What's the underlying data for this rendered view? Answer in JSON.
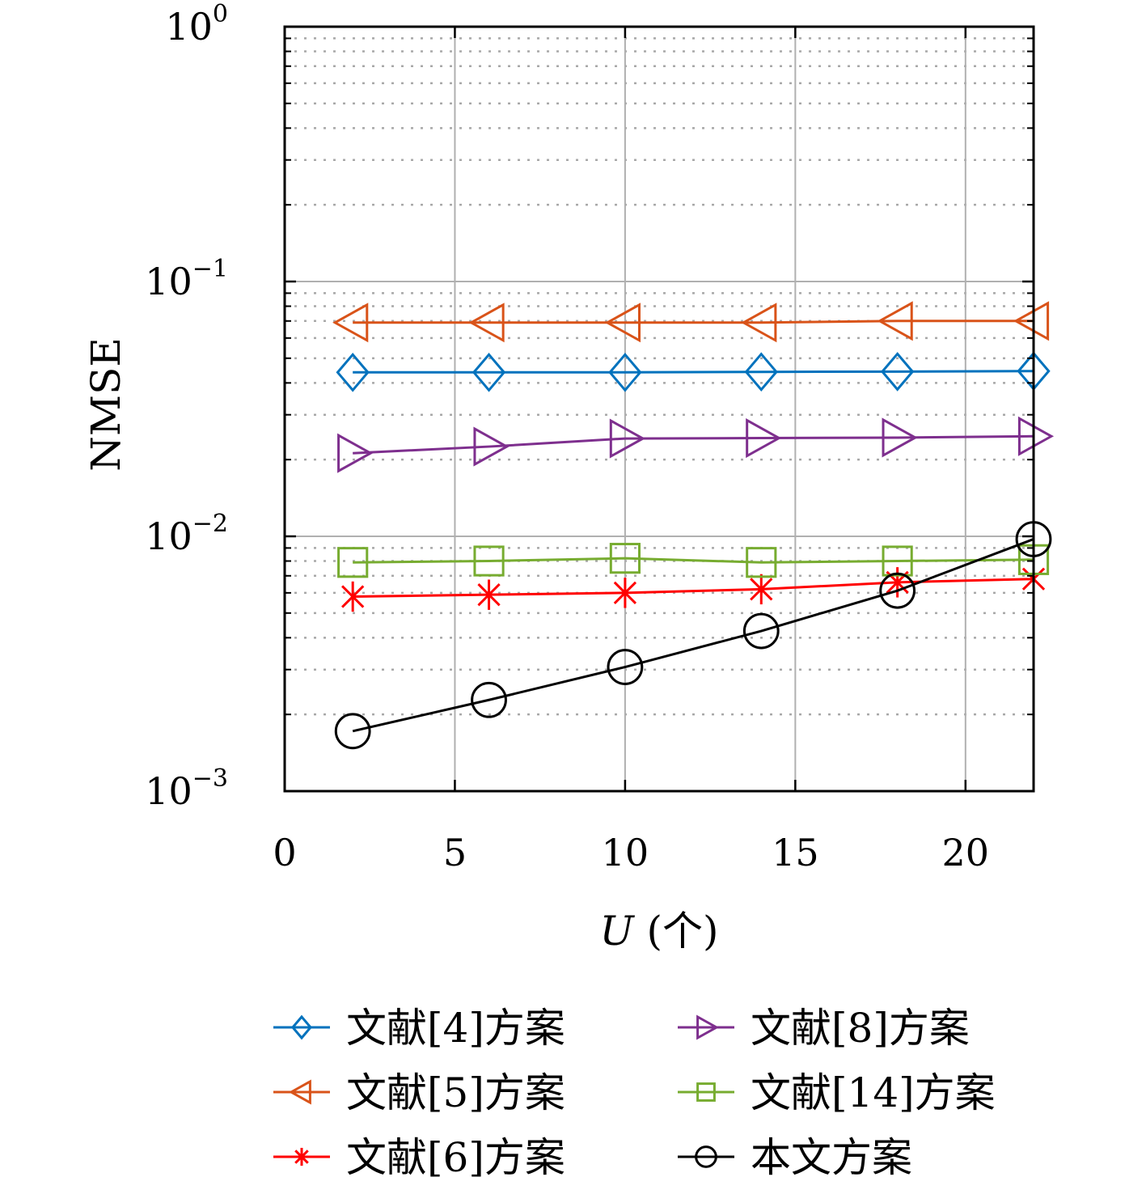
{
  "chart_data": {
    "type": "line",
    "title": "",
    "xlabel": {
      "var": "U",
      "unit": "(个)"
    },
    "ylabel": "NMSE",
    "xlim": [
      0,
      22
    ],
    "ylim": [
      0.001,
      1
    ],
    "yscale": "log",
    "grid": true,
    "xticks": [
      0,
      5,
      10,
      15,
      20
    ],
    "xtick_labels": [
      "0",
      "5",
      "10",
      "15",
      "20"
    ],
    "yticks": [
      {
        "value": 0.001,
        "base": "10",
        "exp": "−3"
      },
      {
        "value": 0.01,
        "base": "10",
        "exp": "−2"
      },
      {
        "value": 0.1,
        "base": "10",
        "exp": "−1"
      },
      {
        "value": 1,
        "base": "10",
        "exp": "0"
      }
    ],
    "legend_position": "bottom",
    "x": [
      2,
      6,
      10,
      14,
      18,
      22
    ],
    "series": [
      {
        "name": "文献[4]方案",
        "color": "#0072BD",
        "marker": "diamond",
        "values": [
          0.044,
          0.044,
          0.044,
          0.0442,
          0.0443,
          0.0445
        ]
      },
      {
        "name": "文献[5]方案",
        "color": "#D95319",
        "marker": "triangle-left",
        "values": [
          0.069,
          0.069,
          0.069,
          0.069,
          0.07,
          0.07
        ]
      },
      {
        "name": "文献[6]方案",
        "color": "#FF0000",
        "marker": "asterisk",
        "values": [
          0.0058,
          0.0059,
          0.006,
          0.0062,
          0.0066,
          0.0068
        ]
      },
      {
        "name": "文献[8]方案",
        "color": "#7E2F8E",
        "marker": "triangle-right",
        "values": [
          0.0212,
          0.0225,
          0.0242,
          0.0243,
          0.0244,
          0.0247
        ]
      },
      {
        "name": "文献[14]方案",
        "color": "#77AC30",
        "marker": "square",
        "values": [
          0.0079,
          0.008,
          0.0082,
          0.0079,
          0.008,
          0.0081
        ]
      },
      {
        "name": "本文方案",
        "color": "#000000",
        "marker": "circle",
        "values": [
          0.00172,
          0.00228,
          0.00307,
          0.00425,
          0.00612,
          0.00975
        ]
      }
    ]
  }
}
